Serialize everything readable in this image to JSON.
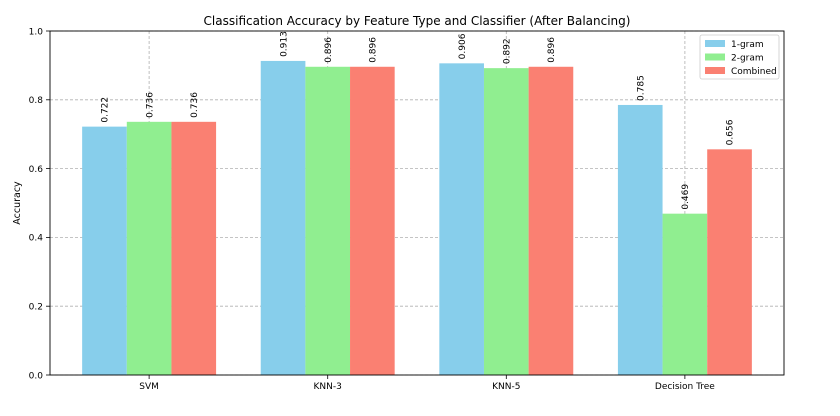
{
  "chart_data": {
    "type": "bar",
    "title": "Classification Accuracy by Feature Type and Classifier (After Balancing)",
    "xlabel": "",
    "ylabel": "Accuracy",
    "ylim": [
      0,
      1.0
    ],
    "yticks": [
      "0.0",
      "0.2",
      "0.4",
      "0.6",
      "0.8",
      "1.0"
    ],
    "categories": [
      "SVM",
      "KNN-3",
      "KNN-5",
      "Decision Tree"
    ],
    "series": [
      {
        "name": "1-gram",
        "color": "#87ceeb",
        "values": [
          0.722,
          0.913,
          0.906,
          0.785
        ],
        "labels": [
          "0.722",
          "0.913",
          "0.906",
          "0.785"
        ]
      },
      {
        "name": "2-gram",
        "color": "#90ee90",
        "values": [
          0.736,
          0.896,
          0.892,
          0.469
        ],
        "labels": [
          "0.736",
          "0.896",
          "0.892",
          "0.469"
        ]
      },
      {
        "name": "Combined",
        "color": "#fa8072",
        "values": [
          0.736,
          0.896,
          0.896,
          0.656
        ],
        "labels": [
          "0.736",
          "0.896",
          "0.896",
          "0.656"
        ]
      }
    ],
    "grid": true,
    "legend_position": "top-right"
  }
}
